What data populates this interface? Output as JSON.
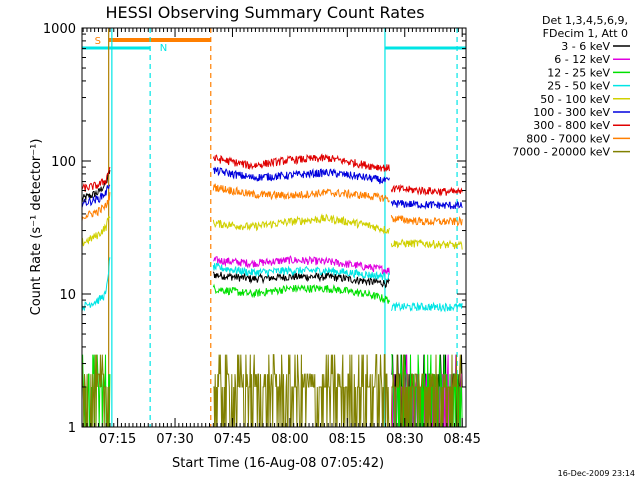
{
  "chart_data": {
    "type": "line",
    "title": "HESSI Observing Summary Count Rates",
    "xlabel": "Start Time (16-Aug-08 07:05:42)",
    "ylabel": "Count Rate (s⁻¹ detector⁻¹)",
    "yscale": "log",
    "ylim": [
      1,
      1000
    ],
    "xlim": [
      "07:05:42",
      "08:46:00"
    ],
    "x_ticks": [
      "07:15",
      "07:30",
      "07:45",
      "08:00",
      "08:15",
      "08:30",
      "08:45"
    ],
    "y_ticks": [
      "1",
      "10",
      "100",
      "1000"
    ],
    "legend_header": [
      "Det 1,3,4,5,6,9,",
      "FDecim 1, Att 0"
    ],
    "legend_position": "right",
    "footer_date": "16-Dec-2009 23:14",
    "markers": [
      {
        "label": "S",
        "color": "#ff7f00"
      },
      {
        "label": "N",
        "color": "#00e5e5"
      }
    ],
    "series": [
      {
        "name": "3 - 6 keV",
        "color": "#000000",
        "segments": [
          {
            "x": [
              "07:05:42",
              "07:08",
              "07:10",
              "07:12",
              "07:13"
            ],
            "y": [
              52,
              55,
              58,
              68,
              85
            ]
          },
          {
            "x": [
              "07:40",
              "07:50",
              "08:00",
              "08:10",
              "08:20",
              "08:26"
            ],
            "y": [
              14,
              13,
              13.5,
              13.5,
              12.5,
              12
            ]
          },
          {
            "x": [
              "08:26:30",
              "08:35",
              "08:45"
            ],
            "y": [
              1.5,
              1.5,
              1.5
            ]
          }
        ]
      },
      {
        "name": "6 - 12 keV",
        "color": "#e000e0",
        "segments": [
          {
            "x": [
              "07:40",
              "07:50",
              "08:00",
              "08:10",
              "08:20",
              "08:26"
            ],
            "y": [
              18,
              17,
              18,
              17.5,
              16,
              15
            ]
          },
          {
            "x": [
              "08:26:30",
              "08:35",
              "08:45"
            ],
            "y": [
              1.8,
              1.8,
              1.8
            ]
          }
        ]
      },
      {
        "name": "12 - 25 keV",
        "color": "#00e000",
        "segments": [
          {
            "x": [
              "07:05:42",
              "07:13"
            ],
            "y": [
              3,
              3
            ]
          },
          {
            "x": [
              "07:40",
              "07:50",
              "08:00",
              "08:10",
              "08:20",
              "08:26"
            ],
            "y": [
              11,
              10,
              11,
              11,
              10,
              9
            ]
          },
          {
            "x": [
              "08:26:30",
              "08:35",
              "08:45"
            ],
            "y": [
              2.5,
              2.5,
              2.5
            ]
          }
        ]
      },
      {
        "name": "25 - 50 keV",
        "color": "#00e5e5",
        "segments": [
          {
            "x": [
              "07:05:42",
              "07:08",
              "07:10",
              "07:12",
              "07:13"
            ],
            "y": [
              8,
              8.5,
              9,
              10,
              18
            ]
          },
          {
            "x": [
              "07:40",
              "07:50",
              "08:00",
              "08:10",
              "08:20",
              "08:26"
            ],
            "y": [
              16,
              14.5,
              15,
              15,
              14,
              13.5
            ]
          },
          {
            "x": [
              "08:26:30",
              "08:35",
              "08:45"
            ],
            "y": [
              8,
              8,
              8
            ]
          }
        ]
      },
      {
        "name": "50 - 100 keV",
        "color": "#d0d000",
        "segments": [
          {
            "x": [
              "07:05:42",
              "07:08",
              "07:10",
              "07:12",
              "07:13"
            ],
            "y": [
              24,
              26,
              28,
              32,
              40
            ]
          },
          {
            "x": [
              "07:40",
              "07:50",
              "08:00",
              "08:10",
              "08:20",
              "08:26"
            ],
            "y": [
              34,
              32,
              35,
              37,
              33,
              30
            ]
          },
          {
            "x": [
              "08:26:30",
              "08:35",
              "08:45"
            ],
            "y": [
              24,
              24,
              23
            ]
          }
        ]
      },
      {
        "name": "100 - 300 keV",
        "color": "#0000dd",
        "segments": [
          {
            "x": [
              "07:05:42",
              "07:08",
              "07:10",
              "07:12",
              "07:13"
            ],
            "y": [
              48,
              50,
              52,
              58,
              70
            ]
          },
          {
            "x": [
              "07:40",
              "07:50",
              "08:00",
              "08:10",
              "08:20",
              "08:26"
            ],
            "y": [
              85,
              75,
              78,
              82,
              75,
              70
            ]
          },
          {
            "x": [
              "08:26:30",
              "08:35",
              "08:45"
            ],
            "y": [
              48,
              47,
              46
            ]
          }
        ]
      },
      {
        "name": "300 - 800 keV",
        "color": "#e00000",
        "segments": [
          {
            "x": [
              "07:05:42",
              "07:08",
              "07:10",
              "07:12",
              "07:13"
            ],
            "y": [
              62,
              64,
              66,
              72,
              90
            ]
          },
          {
            "x": [
              "07:40",
              "07:50",
              "08:00",
              "08:10",
              "08:20",
              "08:26"
            ],
            "y": [
              105,
              92,
              102,
              105,
              93,
              88
            ]
          },
          {
            "x": [
              "08:26:30",
              "08:35",
              "08:45"
            ],
            "y": [
              62,
              60,
              58
            ]
          }
        ]
      },
      {
        "name": "800 - 7000 keV",
        "color": "#ff7f00",
        "segments": [
          {
            "x": [
              "07:05:42",
              "07:08",
              "07:10",
              "07:12",
              "07:13"
            ],
            "y": [
              38,
              40,
              42,
              46,
              55
            ]
          },
          {
            "x": [
              "07:40",
              "07:50",
              "08:00",
              "08:10",
              "08:20",
              "08:26"
            ],
            "y": [
              64,
              56,
              55,
              58,
              55,
              52
            ]
          },
          {
            "x": [
              "08:26:30",
              "08:35",
              "08:45"
            ],
            "y": [
              37,
              35,
              35
            ]
          }
        ]
      },
      {
        "name": "7000 - 20000 keV",
        "color": "#808000",
        "segments": [
          {
            "x": [
              "07:05:42",
              "07:13"
            ],
            "y": [
              1.5,
              1.5
            ]
          },
          {
            "x": [
              "07:40",
              "07:50",
              "08:00",
              "08:10",
              "08:20",
              "08:26"
            ],
            "y": [
              1.8,
              1.8,
              2.0,
              2.2,
              2.0,
              2.0
            ]
          },
          {
            "x": [
              "08:26:30",
              "08:35",
              "08:45"
            ],
            "y": [
              1.5,
              1.5,
              1.5
            ]
          }
        ]
      }
    ]
  }
}
